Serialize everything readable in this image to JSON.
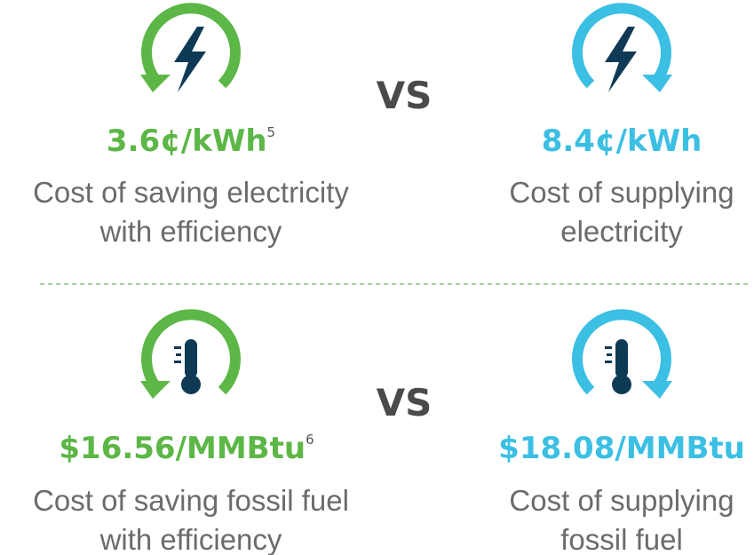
{
  "rows": [
    {
      "left": {
        "value": "3.6¢/kWh",
        "note": "5",
        "lines": [
          "Cost of saving electricity",
          "with efficiency"
        ]
      },
      "separator": "VS",
      "right": {
        "value": "8.4¢/kWh",
        "lines": [
          "Cost of supplying",
          "electricity"
        ]
      }
    },
    {
      "left": {
        "value": "$16.56/MMBtu",
        "note": "6",
        "lines": [
          "Cost of saving fossil fuel",
          "with efficiency"
        ]
      },
      "separator": "VS",
      "right": {
        "value": "$18.08/MMBtu",
        "lines": [
          "Cost of supplying",
          "fossil fuel"
        ]
      }
    }
  ]
}
